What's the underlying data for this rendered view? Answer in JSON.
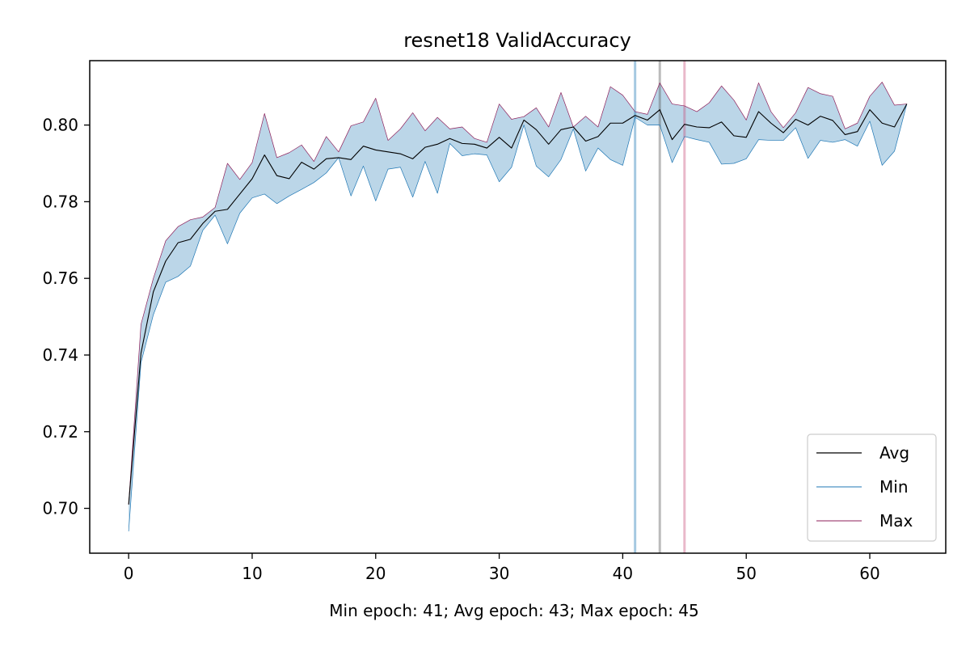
{
  "chart_data": {
    "type": "line",
    "title": "resnet18 ValidAccuracy",
    "xlabel": "Min epoch: 41; Avg epoch: 43; Max epoch: 45",
    "ylabel": "",
    "xlim": [
      -3.15,
      66.15
    ],
    "ylim": [
      0.6883,
      0.8168
    ],
    "x_ticks": [
      0,
      10,
      20,
      30,
      40,
      50,
      60
    ],
    "y_ticks": [
      0.7,
      0.72,
      0.74,
      0.76,
      0.78,
      0.8
    ],
    "grid": false,
    "legend_position": "lower-right",
    "band_color": "#1f77b4",
    "vlines": [
      {
        "x": 41,
        "color": "#1f77b4"
      },
      {
        "x": 43,
        "color": "#555555"
      },
      {
        "x": 45,
        "color": "#c74f7a"
      }
    ],
    "series": [
      {
        "name": "Avg",
        "color": "#000000",
        "values": [
          0.701,
          0.7405,
          0.7565,
          0.7645,
          0.7693,
          0.7702,
          0.7743,
          0.7775,
          0.778,
          0.782,
          0.786,
          0.7922,
          0.7868,
          0.786,
          0.7903,
          0.7885,
          0.7912,
          0.7915,
          0.791,
          0.7945,
          0.7935,
          0.793,
          0.7925,
          0.7912,
          0.7942,
          0.795,
          0.7965,
          0.7952,
          0.795,
          0.794,
          0.7968,
          0.794,
          0.8013,
          0.7988,
          0.795,
          0.7988,
          0.7995,
          0.7958,
          0.797,
          0.8005,
          0.8005,
          0.8025,
          0.8013,
          0.804,
          0.7962,
          0.8002,
          0.7995,
          0.7993,
          0.8008,
          0.7972,
          0.7968,
          0.8035,
          0.8005,
          0.798,
          0.8015,
          0.8,
          0.8023,
          0.8012,
          0.7975,
          0.7983,
          0.804,
          0.8005,
          0.7995,
          0.8055
        ]
      },
      {
        "name": "Min",
        "color": "#1f77b4",
        "values": [
          0.694,
          0.738,
          0.7505,
          0.759,
          0.7605,
          0.7632,
          0.7725,
          0.7765,
          0.769,
          0.777,
          0.781,
          0.782,
          0.7795,
          0.7815,
          0.7832,
          0.785,
          0.7875,
          0.7915,
          0.7815,
          0.7893,
          0.7802,
          0.7885,
          0.789,
          0.7812,
          0.7905,
          0.7822,
          0.7952,
          0.792,
          0.7925,
          0.7922,
          0.7852,
          0.789,
          0.8,
          0.7893,
          0.7865,
          0.791,
          0.799,
          0.788,
          0.794,
          0.791,
          0.7895,
          0.802,
          0.8,
          0.8,
          0.7902,
          0.797,
          0.7962,
          0.7955,
          0.7898,
          0.79,
          0.7912,
          0.7962,
          0.796,
          0.796,
          0.7993,
          0.7913,
          0.796,
          0.7955,
          0.7962,
          0.7945,
          0.801,
          0.7895,
          0.7932,
          0.8055
        ]
      },
      {
        "name": "Max",
        "color": "#8e1f5a",
        "values": [
          0.701,
          0.748,
          0.76,
          0.7698,
          0.7735,
          0.7753,
          0.776,
          0.7785,
          0.79,
          0.7858,
          0.7902,
          0.803,
          0.7915,
          0.7928,
          0.7948,
          0.7905,
          0.797,
          0.793,
          0.7998,
          0.8008,
          0.807,
          0.796,
          0.799,
          0.8032,
          0.7985,
          0.802,
          0.799,
          0.7995,
          0.7965,
          0.7955,
          0.8055,
          0.8015,
          0.8022,
          0.8045,
          0.7995,
          0.8085,
          0.7995,
          0.8023,
          0.7995,
          0.81,
          0.8078,
          0.8035,
          0.8028,
          0.811,
          0.8055,
          0.805,
          0.8035,
          0.8058,
          0.8102,
          0.8065,
          0.8013,
          0.811,
          0.8035,
          0.7993,
          0.8032,
          0.8098,
          0.8082,
          0.8075,
          0.799,
          0.8005,
          0.8075,
          0.8112,
          0.8052,
          0.8055
        ]
      }
    ]
  }
}
